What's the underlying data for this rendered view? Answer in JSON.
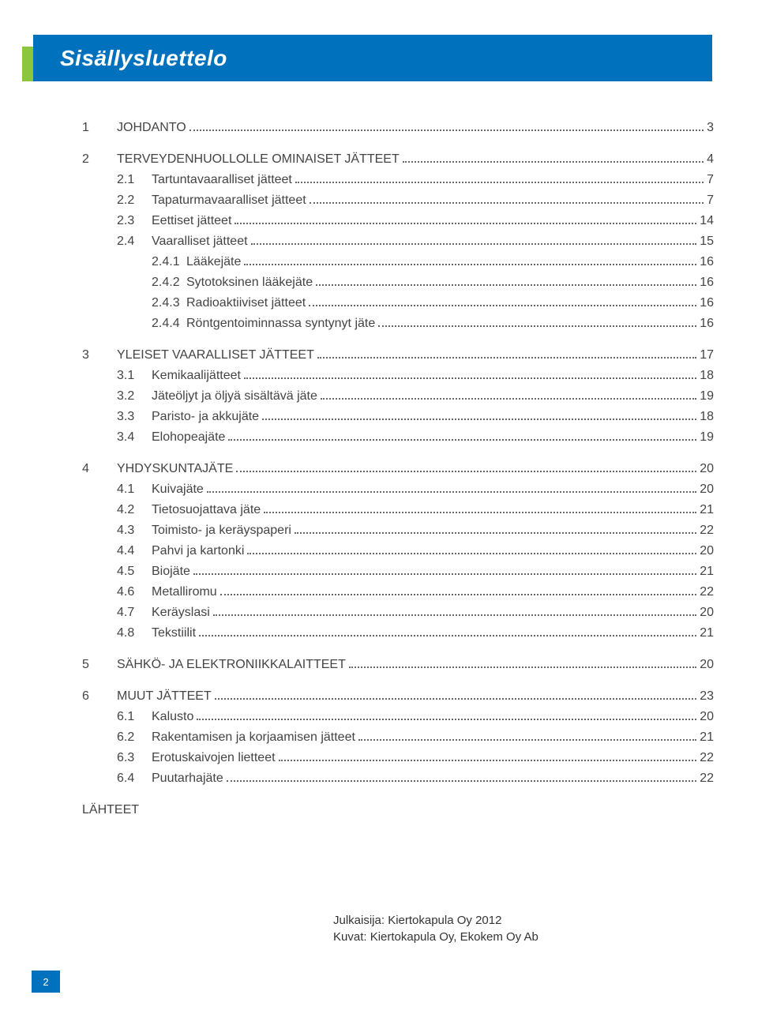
{
  "title": "Sisällysluettelo",
  "colors": {
    "accent_blue": "#0071bc",
    "accent_green": "#8cc63f",
    "text": "#333333"
  },
  "toc": [
    {
      "num": "1",
      "label": "JOHDANTO",
      "page": "3",
      "children": []
    },
    {
      "num": "2",
      "label": "TERVEYDENHUOLLOLLE OMINAISET JÄTTEET",
      "page": "4",
      "children": [
        {
          "num": "2.1",
          "label": "Tartuntavaaralliset jätteet",
          "page": "7"
        },
        {
          "num": "2.2",
          "label": "Tapaturmavaaralliset jätteet",
          "page": "7"
        },
        {
          "num": "2.3",
          "label": "Eettiset jätteet",
          "page": "14"
        },
        {
          "num": "2.4",
          "label": "Vaaralliset jätteet",
          "page": "15"
        },
        {
          "num": "2.4.1",
          "label": "Lääkejäte",
          "page": "16",
          "deep": true
        },
        {
          "num": "2.4.2",
          "label": "Sytotoksinen lääkejäte",
          "page": "16",
          "deep": true
        },
        {
          "num": "2.4.3",
          "label": "Radioaktiiviset jätteet",
          "page": "16",
          "deep": true
        },
        {
          "num": "2.4.4",
          "label": "Röntgentoiminnassa syntynyt jäte",
          "page": "16",
          "deep": true
        }
      ]
    },
    {
      "num": "3",
      "label": "YLEISET VAARALLISET JÄTTEET",
      "page": "17",
      "children": [
        {
          "num": "3.1",
          "label": "Kemikaalijätteet",
          "page": "18"
        },
        {
          "num": "3.2",
          "label": "Jäteöljyt ja öljyä sisältävä jäte",
          "page": "19"
        },
        {
          "num": "3.3",
          "label": "Paristo- ja akkujäte",
          "page": "18"
        },
        {
          "num": "3.4",
          "label": "Elohopeajäte",
          "page": "19"
        }
      ]
    },
    {
      "num": "4",
      "label": "YHDYSKUNTAJÄTE",
      "page": "20",
      "children": [
        {
          "num": "4.1",
          "label": "Kuivajäte",
          "page": "20"
        },
        {
          "num": "4.2",
          "label": "Tietosuojattava jäte",
          "page": "21"
        },
        {
          "num": "4.3",
          "label": "Toimisto- ja keräyspaperi",
          "page": "22"
        },
        {
          "num": "4.4",
          "label": "Pahvi ja kartonki",
          "page": "20"
        },
        {
          "num": "4.5",
          "label": "Biojäte",
          "page": "21"
        },
        {
          "num": "4.6",
          "label": "Metalliromu",
          "page": "22"
        },
        {
          "num": "4.7",
          "label": "Keräyslasi",
          "page": "20"
        },
        {
          "num": "4.8",
          "label": "Tekstiilit",
          "page": "21"
        }
      ]
    },
    {
      "num": "5",
      "label": "SÄHKÖ- JA ELEKTRONIIKKALAITTEET",
      "page": "20",
      "children": []
    },
    {
      "num": "6",
      "label": "MUUT JÄTTEET",
      "page": "23",
      "children": [
        {
          "num": "6.1",
          "label": "Kalusto",
          "page": "20"
        },
        {
          "num": "6.2",
          "label": "Rakentamisen ja korjaamisen jätteet",
          "page": "21"
        },
        {
          "num": "6.3",
          "label": "Erotuskaivojen lietteet",
          "page": "22"
        },
        {
          "num": "6.4",
          "label": "Puutarhajäte",
          "page": "22"
        }
      ]
    }
  ],
  "appendix": "LÄHTEET",
  "footer": {
    "line1": "Julkaisija: Kiertokapula Oy 2012",
    "line2": "Kuvat: Kiertokapula Oy, Ekokem Oy Ab"
  },
  "page_number": "2"
}
